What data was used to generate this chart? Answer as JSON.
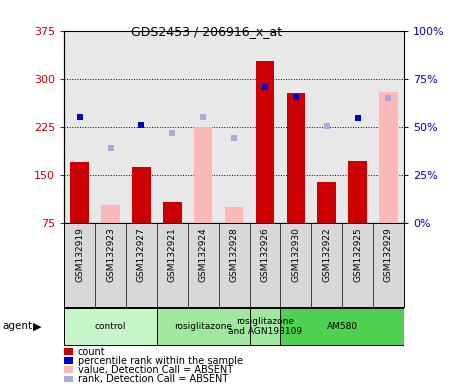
{
  "title": "GDS2453 / 206916_x_at",
  "samples": [
    "GSM132919",
    "GSM132923",
    "GSM132927",
    "GSM132921",
    "GSM132924",
    "GSM132928",
    "GSM132926",
    "GSM132930",
    "GSM132922",
    "GSM132925",
    "GSM132929"
  ],
  "count_values": [
    170,
    null,
    162,
    107,
    null,
    null,
    328,
    277,
    138,
    172,
    null
  ],
  "count_absent": [
    null,
    103,
    null,
    null,
    225,
    100,
    null,
    null,
    null,
    null,
    280
  ],
  "percentile_present": [
    240,
    null,
    228,
    null,
    null,
    null,
    287,
    272,
    null,
    238,
    null
  ],
  "percentile_absent": [
    null,
    192,
    null,
    215,
    240,
    208,
    null,
    null,
    226,
    null,
    270
  ],
  "ylim_left": [
    75,
    375
  ],
  "ylim_right": [
    0,
    100
  ],
  "yticks_left": [
    75,
    150,
    225,
    300,
    375
  ],
  "yticks_right": [
    0,
    25,
    50,
    75,
    100
  ],
  "groups": [
    {
      "label": "control",
      "start": 0,
      "end": 3,
      "color": "#c8f5c8"
    },
    {
      "label": "rosiglitazone",
      "start": 3,
      "end": 6,
      "color": "#a0e8a0"
    },
    {
      "label": "rosiglitazone\nand AGN193109",
      "start": 6,
      "end": 7,
      "color": "#a0e8a0"
    },
    {
      "label": "AM580",
      "start": 7,
      "end": 11,
      "color": "#50d050"
    }
  ],
  "count_color": "#cc0000",
  "absent_color": "#ffb8b8",
  "percentile_color": "#0000cc",
  "rank_absent_color": "#aaaadd",
  "left_tick_color": "#cc0000",
  "right_tick_color": "#0000cc",
  "sample_bg": "#d8d8d8",
  "plot_bg": "#e8e8e8",
  "legend_labels": [
    "count",
    "percentile rank within the sample",
    "value, Detection Call = ABSENT",
    "rank, Detection Call = ABSENT"
  ]
}
